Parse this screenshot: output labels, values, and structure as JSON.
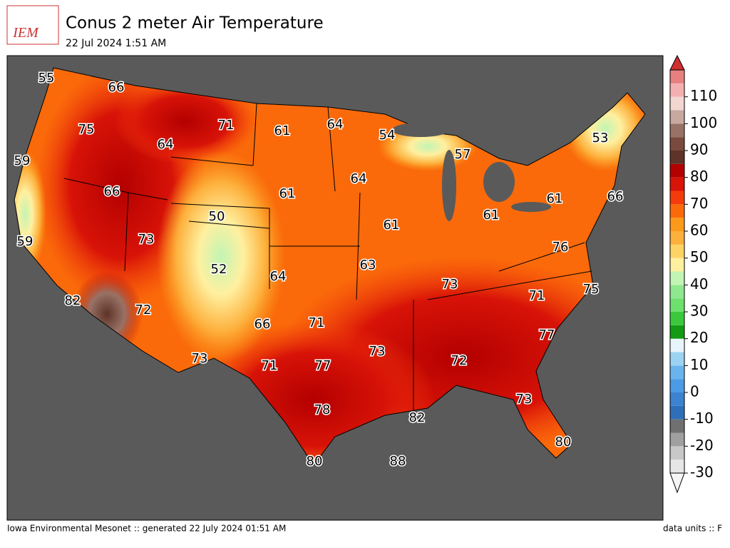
{
  "header": {
    "logo": "IEM",
    "title": "Conus 2 meter Air Temperature",
    "subtitle": "22 Jul 2024 1:51 AM"
  },
  "map": {
    "labels": [
      55,
      66,
      75,
      59,
      66,
      59,
      73,
      82,
      72,
      50,
      52,
      64,
      71,
      61,
      64,
      54,
      57,
      53,
      64,
      61,
      61,
      61,
      61,
      66,
      76,
      63,
      64,
      73,
      71,
      75,
      66,
      71,
      73,
      71,
      77,
      73,
      72,
      77,
      73,
      78,
      82,
      80,
      80,
      88
    ]
  },
  "colorbar": {
    "lim": [
      -30,
      120
    ],
    "ticks": [
      -30,
      -20,
      -10,
      0,
      10,
      20,
      30,
      40,
      50,
      60,
      70,
      80,
      90,
      100,
      110
    ],
    "colors": [
      "#e6e6e6",
      "#c8c8c8",
      "#a0a0a0",
      "#707070",
      "#2f6fba",
      "#3b82d0",
      "#4b9be6",
      "#6ab4ee",
      "#9cd3f2",
      "#e8f4fa",
      "#139b13",
      "#3cc83c",
      "#6ee06e",
      "#8fe88f",
      "#c2f5b4",
      "#fff0a0",
      "#fdd366",
      "#fdb03c",
      "#fb9a1a",
      "#fa6a0a",
      "#f33b0b",
      "#d81308",
      "#b30000",
      "#5e3328",
      "#7a4a3d",
      "#997266",
      "#c7a9a0",
      "#f2d6d0",
      "#f4b0b0",
      "#e88080"
    ],
    "over": "#d03030",
    "under": "#f5f5f5"
  },
  "footer": {
    "left": "Iowa Environmental Mesonet :: generated 22 July 2024 01:51 AM",
    "right": "data units :: F"
  }
}
